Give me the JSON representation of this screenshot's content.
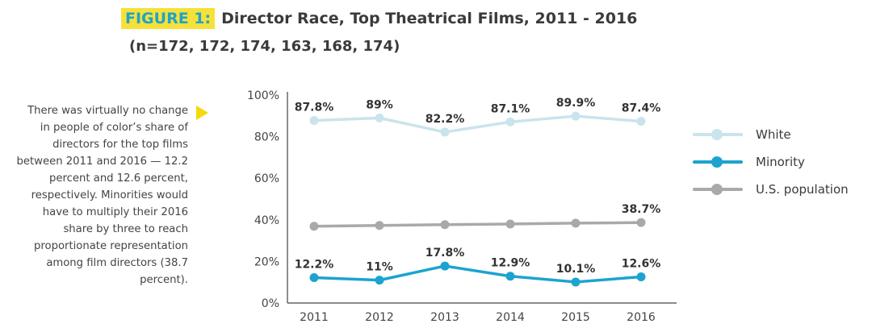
{
  "header": {
    "figure_label": "FIGURE 1:",
    "title": "Director Race, Top Theatrical Films, 2011 - 2016",
    "subtitle": "(n=172, 172, 174, 163, 168, 174)"
  },
  "note": "There was virtually no change in people of color’s share of directors for the top films between 2011 and 2016 — 12.2 percent and 12.6 percent, respectively. Minorities would have to multiply their 2016 share by three to reach proportionate representation among film directors (38.7 percent).",
  "chart_data": {
    "type": "line",
    "title": "Director Race, Top Theatrical Films, 2011 - 2016",
    "categories": [
      "2011",
      "2012",
      "2013",
      "2014",
      "2015",
      "2016"
    ],
    "y_ticks": [
      "0%",
      "20%",
      "40%",
      "60%",
      "80%",
      "100%"
    ],
    "ylim": [
      0,
      100
    ],
    "grid": false,
    "legend_position": "right",
    "series": [
      {
        "name": "White",
        "color": "#c9e4ec",
        "values": [
          87.8,
          89,
          82.2,
          87.1,
          89.9,
          87.4
        ],
        "labels": [
          "87.8%",
          "89%",
          "82.2%",
          "87.1%",
          "89.9%",
          "87.4%"
        ]
      },
      {
        "name": "Minority",
        "color": "#1ca3cf",
        "values": [
          12.2,
          11,
          17.8,
          12.9,
          10.1,
          12.6
        ],
        "labels": [
          "12.2%",
          "11%",
          "17.8%",
          "12.9%",
          "10.1%",
          "12.6%"
        ]
      },
      {
        "name": "U.S. population",
        "color": "#a9a9a9",
        "values": [
          36.9,
          37.3,
          37.7,
          38.0,
          38.4,
          38.7
        ],
        "labels": [
          "",
          "",
          "",
          "",
          "",
          "38.7%"
        ]
      }
    ]
  }
}
